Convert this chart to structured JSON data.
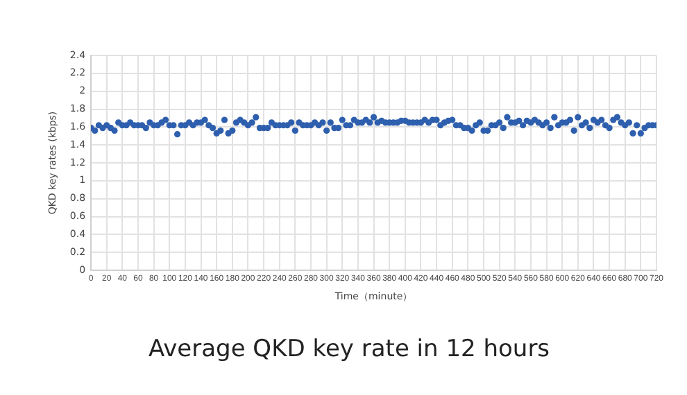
{
  "chart_data": {
    "type": "scatter",
    "title": "Average QKD key rate in 12 hours",
    "xlabel": "Time（minute）",
    "ylabel": "QKD key rates (kbps)",
    "x": [
      0,
      5,
      10,
      15,
      20,
      25,
      30,
      35,
      40,
      45,
      50,
      55,
      60,
      65,
      70,
      75,
      80,
      85,
      90,
      95,
      100,
      105,
      110,
      115,
      120,
      125,
      130,
      135,
      140,
      145,
      150,
      155,
      160,
      165,
      170,
      175,
      180,
      185,
      190,
      195,
      200,
      205,
      210,
      215,
      220,
      225,
      230,
      235,
      240,
      245,
      250,
      255,
      260,
      265,
      270,
      275,
      280,
      285,
      290,
      295,
      300,
      305,
      310,
      315,
      320,
      325,
      330,
      335,
      340,
      345,
      350,
      355,
      360,
      365,
      370,
      375,
      380,
      385,
      390,
      395,
      400,
      405,
      410,
      415,
      420,
      425,
      430,
      435,
      440,
      445,
      450,
      455,
      460,
      465,
      470,
      475,
      480,
      485,
      490,
      495,
      500,
      505,
      510,
      515,
      520,
      525,
      530,
      535,
      540,
      545,
      550,
      555,
      560,
      565,
      570,
      575,
      580,
      585,
      590,
      595,
      600,
      605,
      610,
      615,
      620,
      625,
      630,
      635,
      640,
      645,
      650,
      655,
      660,
      665,
      670,
      675,
      680,
      685,
      690,
      695,
      700,
      705,
      710,
      715,
      720
    ],
    "series": [
      {
        "color": "#2e5fae",
        "values": [
          1.59,
          1.56,
          1.62,
          1.59,
          1.62,
          1.59,
          1.56,
          1.65,
          1.62,
          1.62,
          1.65,
          1.62,
          1.62,
          1.62,
          1.59,
          1.65,
          1.62,
          1.62,
          1.65,
          1.68,
          1.62,
          1.62,
          1.52,
          1.62,
          1.62,
          1.65,
          1.62,
          1.65,
          1.65,
          1.68,
          1.62,
          1.59,
          1.53,
          1.56,
          1.68,
          1.53,
          1.56,
          1.65,
          1.68,
          1.65,
          1.62,
          1.65,
          1.71,
          1.59,
          1.59,
          1.59,
          1.65,
          1.62,
          1.62,
          1.62,
          1.62,
          1.65,
          1.56,
          1.65,
          1.62,
          1.62,
          1.62,
          1.65,
          1.62,
          1.65,
          1.56,
          1.65,
          1.59,
          1.59,
          1.68,
          1.62,
          1.62,
          1.68,
          1.65,
          1.65,
          1.68,
          1.65,
          1.71,
          1.65,
          1.67,
          1.65,
          1.65,
          1.65,
          1.65,
          1.67,
          1.67,
          1.65,
          1.65,
          1.65,
          1.65,
          1.68,
          1.65,
          1.68,
          1.68,
          1.62,
          1.65,
          1.67,
          1.68,
          1.62,
          1.62,
          1.59,
          1.59,
          1.56,
          1.62,
          1.65,
          1.56,
          1.56,
          1.62,
          1.62,
          1.65,
          1.59,
          1.71,
          1.65,
          1.65,
          1.67,
          1.62,
          1.67,
          1.65,
          1.68,
          1.65,
          1.62,
          1.65,
          1.59,
          1.71,
          1.62,
          1.65,
          1.65,
          1.68,
          1.56,
          1.71,
          1.62,
          1.65,
          1.59,
          1.68,
          1.65,
          1.68,
          1.62,
          1.59,
          1.68,
          1.71,
          1.65,
          1.62,
          1.65,
          1.53,
          1.62,
          1.53,
          1.59,
          1.62,
          1.62,
          1.62
        ]
      }
    ],
    "xlim": [
      0,
      720
    ],
    "xticks": [
      0,
      20,
      40,
      60,
      80,
      100,
      120,
      140,
      160,
      180,
      200,
      220,
      240,
      260,
      280,
      300,
      320,
      340,
      360,
      380,
      400,
      420,
      440,
      460,
      480,
      500,
      520,
      540,
      560,
      580,
      600,
      620,
      640,
      660,
      680,
      700,
      720
    ],
    "ylim": [
      0,
      2.4
    ],
    "yticks": [
      0,
      0.2,
      0.4,
      0.6,
      0.8,
      1,
      1.2,
      1.4,
      1.6,
      1.8,
      2,
      2.2,
      2.4
    ],
    "grid": true,
    "marker": "circle",
    "legend": false
  }
}
